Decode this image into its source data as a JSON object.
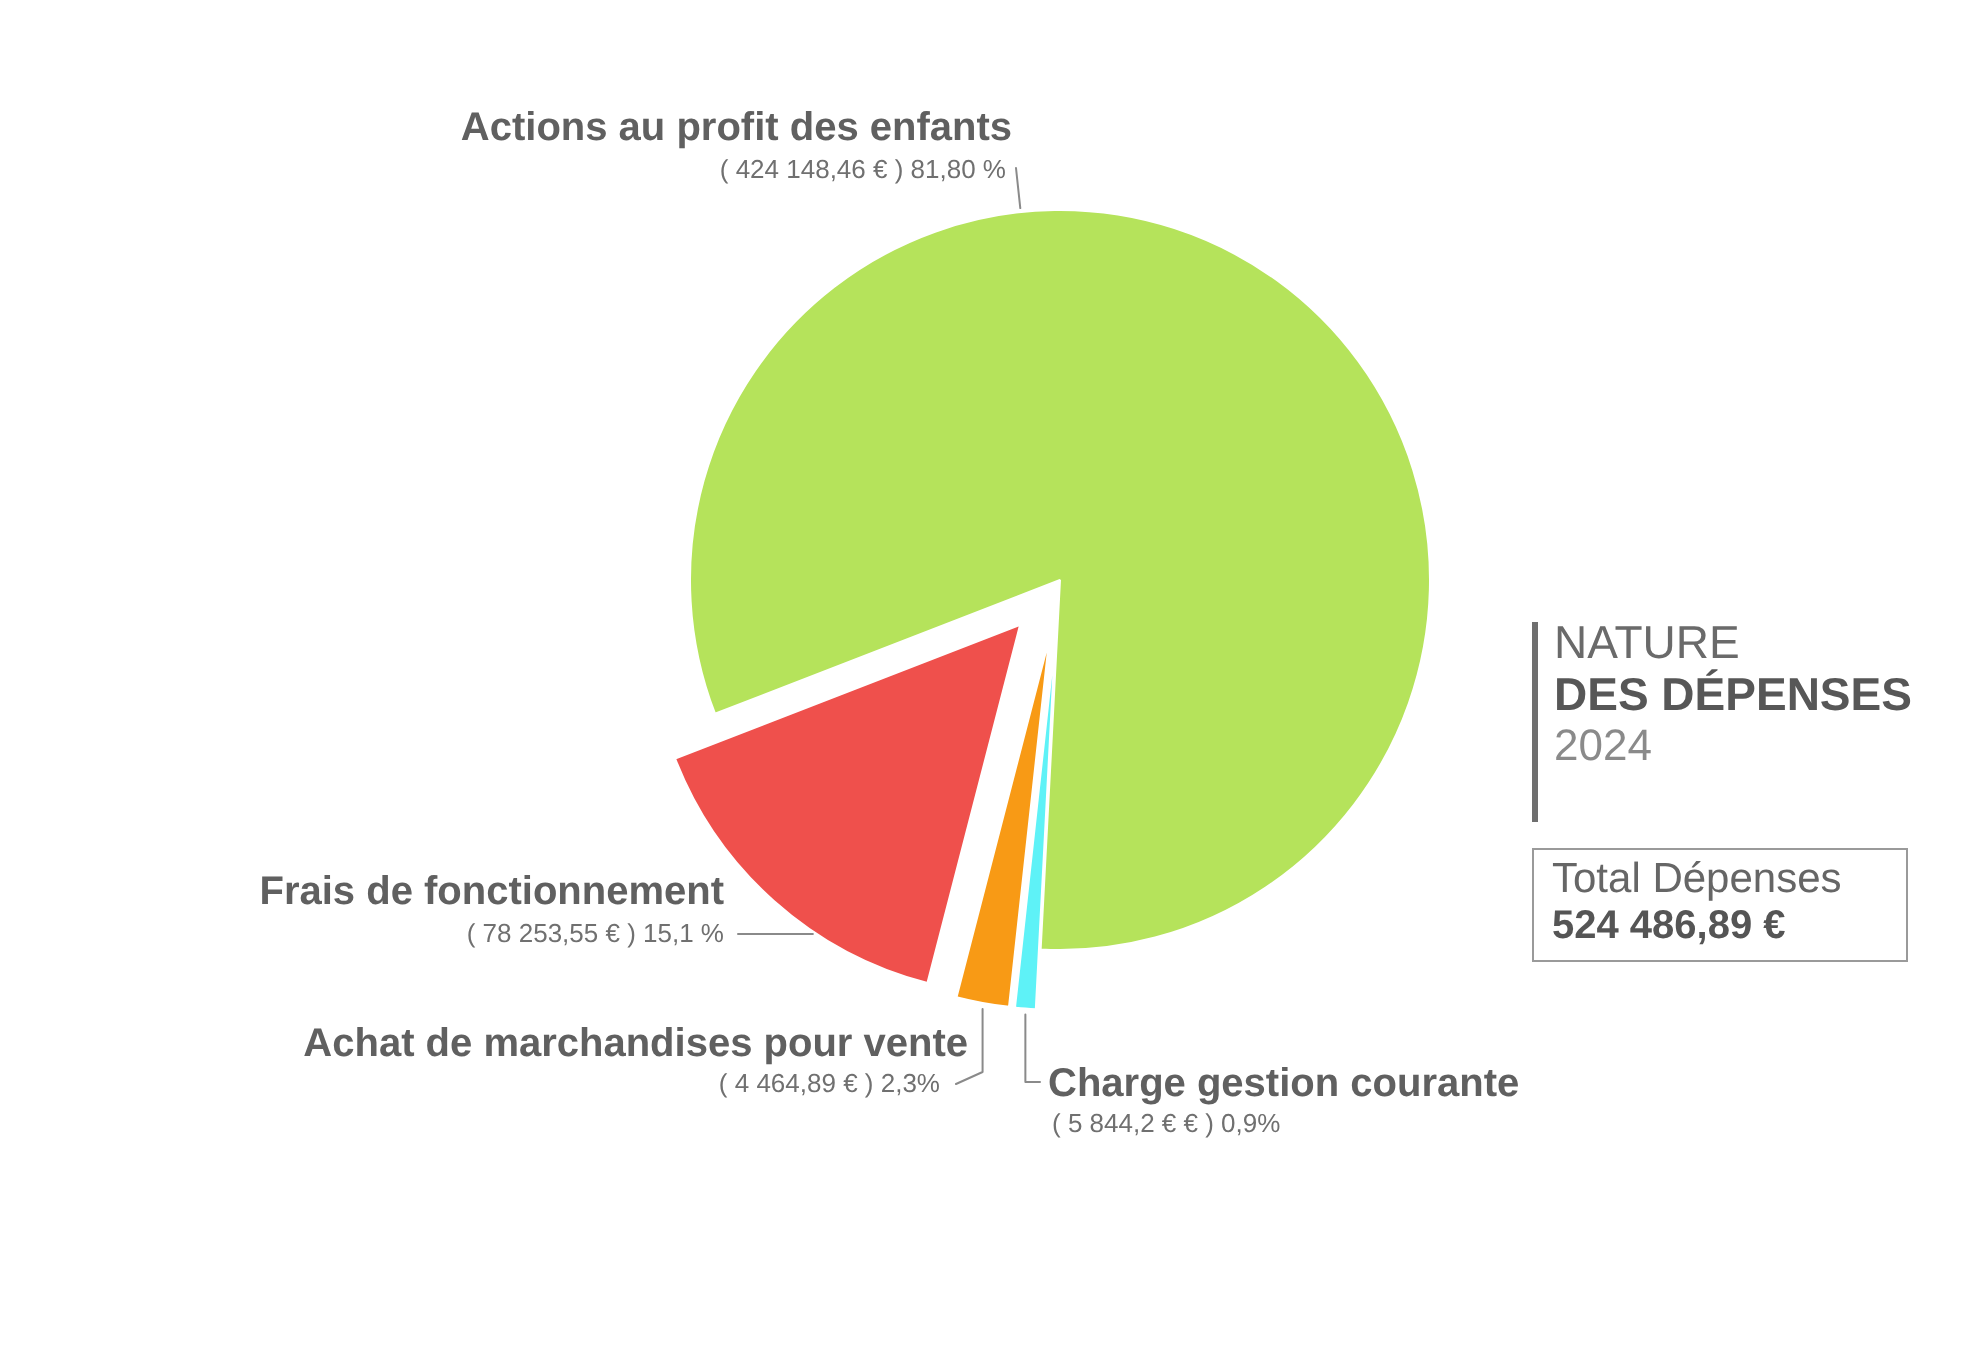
{
  "chart_data": {
    "type": "pie",
    "title": "NATURE\nDES DÉPENSES",
    "subtitle": "2024",
    "categories": [
      "Actions au profit des enfants",
      "Charge gestion courante",
      "Achat de marchandises pour vente",
      "Frais de fonctionnement"
    ],
    "values": [
      81.8,
      0.9,
      2.3,
      15.1
    ],
    "colors": [
      "#b5e35b",
      "#5ef2f7",
      "#f89a15",
      "#ef504c"
    ],
    "value_labels": [
      "( 424 148,46 € ) 81,80 %",
      "( 5 844,2 € € ) 0,9%",
      "( 4 464,89 € ) 2,3%",
      "( 78 253,55 € ) 15,1 %"
    ],
    "annotations": [
      "Total Dépenses\n524 486,89 €"
    ]
  }
}
